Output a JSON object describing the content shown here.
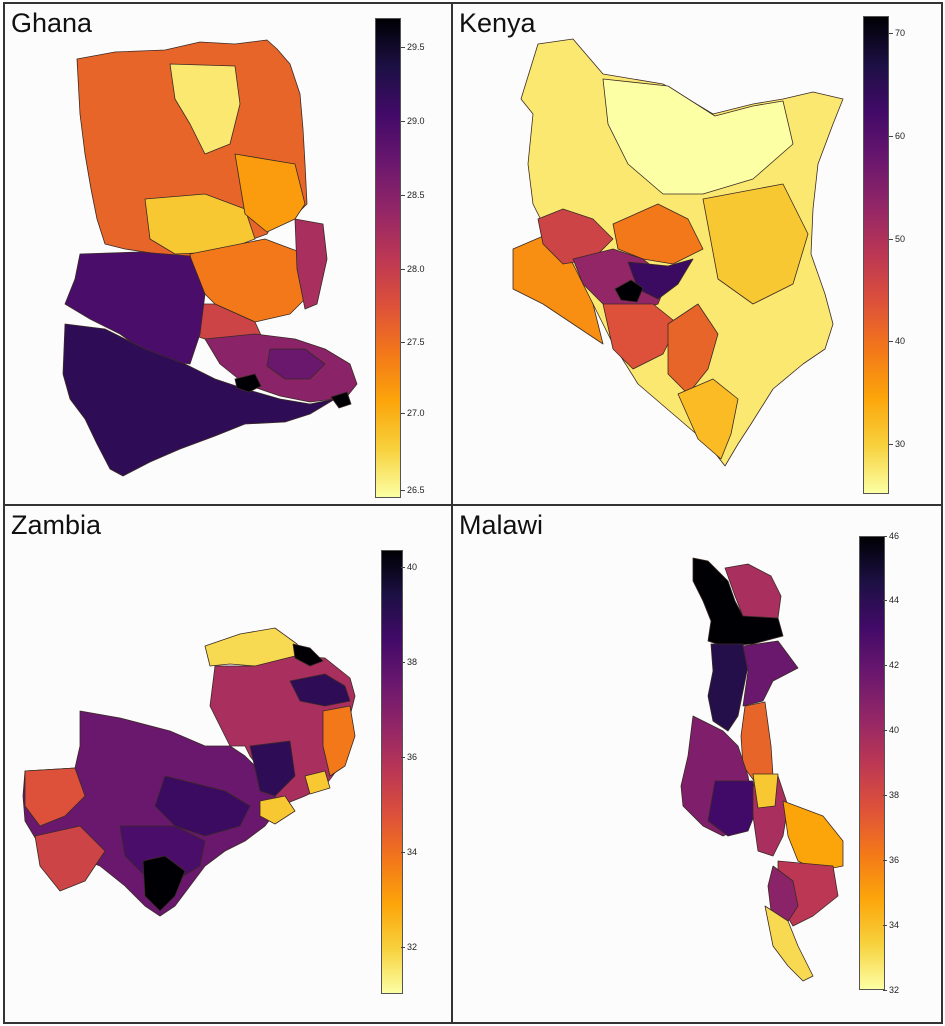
{
  "figure": {
    "panels": [
      {
        "id": "ghana",
        "title": "Ghana",
        "colorbar": {
          "min": 26.35,
          "max": 29.75,
          "ticks": [
            "26.5",
            "27.0",
            "27.5",
            "28.0",
            "28.5",
            "29.0",
            "29.5"
          ]
        }
      },
      {
        "id": "kenya",
        "title": "Kenya",
        "colorbar": {
          "min": 25.5,
          "max": 72.0,
          "ticks": [
            "30",
            "40",
            "50",
            "60",
            "70"
          ]
        }
      },
      {
        "id": "zambia",
        "title": "Zambia",
        "colorbar": {
          "min": 30.8,
          "max": 40.6,
          "ticks": [
            "32",
            "34",
            "36",
            "38",
            "40"
          ]
        }
      },
      {
        "id": "malawi",
        "title": "Malawi",
        "colorbar": {
          "min": 32.0,
          "max": 46.0,
          "ticks": [
            "32",
            "34",
            "36",
            "38",
            "40",
            "42",
            "44",
            "46"
          ]
        }
      }
    ]
  },
  "colormap": {
    "name": "inferno",
    "stops": [
      "#fcffa4",
      "#f7d13d",
      "#fca50a",
      "#f37819",
      "#dd513a",
      "#bc3754",
      "#932667",
      "#6a176e",
      "#420a68",
      "#1c1044",
      "#000004"
    ]
  }
}
